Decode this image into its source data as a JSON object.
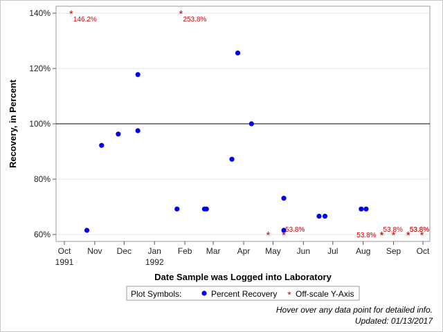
{
  "chart_data": {
    "type": "scatter",
    "xlabel": "Date Sample was Logged into Laboratory",
    "ylabel": "Recovery, in Percent",
    "xlim": [
      "1991-10-01",
      "1992-10-01"
    ],
    "ylim": [
      60,
      140
    ],
    "y_ticks": [
      60,
      80,
      100,
      120,
      140
    ],
    "y_tick_labels": [
      "60%",
      "80%",
      "100%",
      "120%",
      "140%"
    ],
    "x_ticks": [
      {
        "date": "1991-10-01",
        "label": "Oct",
        "label2": "1991"
      },
      {
        "date": "1991-11-01",
        "label": "Nov",
        "label2": ""
      },
      {
        "date": "1991-12-01",
        "label": "Dec",
        "label2": ""
      },
      {
        "date": "1992-01-01",
        "label": "Jan",
        "label2": "1992"
      },
      {
        "date": "1992-02-01",
        "label": "Feb",
        "label2": ""
      },
      {
        "date": "1992-03-01",
        "label": "Mar",
        "label2": ""
      },
      {
        "date": "1992-04-01",
        "label": "Apr",
        "label2": ""
      },
      {
        "date": "1992-05-01",
        "label": "May",
        "label2": ""
      },
      {
        "date": "1992-06-01",
        "label": "Jun",
        "label2": ""
      },
      {
        "date": "1992-07-01",
        "label": "Jul",
        "label2": ""
      },
      {
        "date": "1992-08-01",
        "label": "Aug",
        "label2": ""
      },
      {
        "date": "1992-09-01",
        "label": "Sep",
        "label2": ""
      },
      {
        "date": "1992-10-01",
        "label": "Oct",
        "label2": ""
      }
    ],
    "reference_line": 100,
    "grid": true,
    "series": [
      {
        "name": "Percent Recovery",
        "color": "#0000ee",
        "marker": "circle",
        "points": [
          {
            "x": "1991-10-24",
            "y": 61.5
          },
          {
            "x": "1991-11-08",
            "y": 92.2
          },
          {
            "x": "1991-11-25",
            "y": 96.3
          },
          {
            "x": "1991-12-15",
            "y": 97.5
          },
          {
            "x": "1991-12-15",
            "y": 117.8
          },
          {
            "x": "1992-01-24",
            "y": 69.2
          },
          {
            "x": "1992-02-21",
            "y": 69.2
          },
          {
            "x": "1992-02-23",
            "y": 69.2
          },
          {
            "x": "1992-03-20",
            "y": 87.2
          },
          {
            "x": "1992-03-26",
            "y": 125.6
          },
          {
            "x": "1992-04-09",
            "y": 100.0
          },
          {
            "x": "1992-05-12",
            "y": 61.5
          },
          {
            "x": "1992-05-12",
            "y": 73.1
          },
          {
            "x": "1992-06-17",
            "y": 66.6
          },
          {
            "x": "1992-06-23",
            "y": 66.6
          },
          {
            "x": "1992-07-30",
            "y": 69.2
          },
          {
            "x": "1992-08-04",
            "y": 69.2
          }
        ]
      },
      {
        "name": "Off-scale Y-Axis",
        "color": "#e00000",
        "marker": "asterisk",
        "points": [
          {
            "x": "1991-10-08",
            "y": 140,
            "label": "146.2%",
            "label_side": "below"
          },
          {
            "x": "1992-01-28",
            "y": 140,
            "label": "253.8%",
            "label_side": "below"
          },
          {
            "x": "1992-04-26",
            "y": 60,
            "label": "",
            "label_side": "none"
          },
          {
            "x": "1992-05-12",
            "y": 60,
            "label": "53.8%",
            "label_side": "above"
          },
          {
            "x": "1992-08-20",
            "y": 60,
            "label": "53.8%",
            "label_side": "above"
          },
          {
            "x": "1992-08-20",
            "y": 60,
            "label": "53.8%",
            "label_side": "left"
          },
          {
            "x": "1992-09-01",
            "y": 60,
            "label": "",
            "label_side": "none"
          },
          {
            "x": "1992-09-16",
            "y": 60,
            "label": "53.8%",
            "label_side": "above"
          },
          {
            "x": "1992-09-16",
            "y": 60,
            "label": "53.8%",
            "label_side": "above"
          },
          {
            "x": "1992-09-30",
            "y": 60,
            "label": "",
            "label_side": "none"
          }
        ]
      }
    ],
    "legend": {
      "title": "Plot Symbols:",
      "position": "bottom",
      "items": [
        {
          "label": "Percent Recovery",
          "marker": "circle",
          "color": "#0000ee"
        },
        {
          "label": "Off-scale Y-Axis",
          "marker": "asterisk",
          "color": "#e00000"
        }
      ]
    }
  },
  "footnotes": {
    "hover_hint": "Hover over any data point for detailed info.",
    "updated": "Updated: 01/13/2017"
  }
}
